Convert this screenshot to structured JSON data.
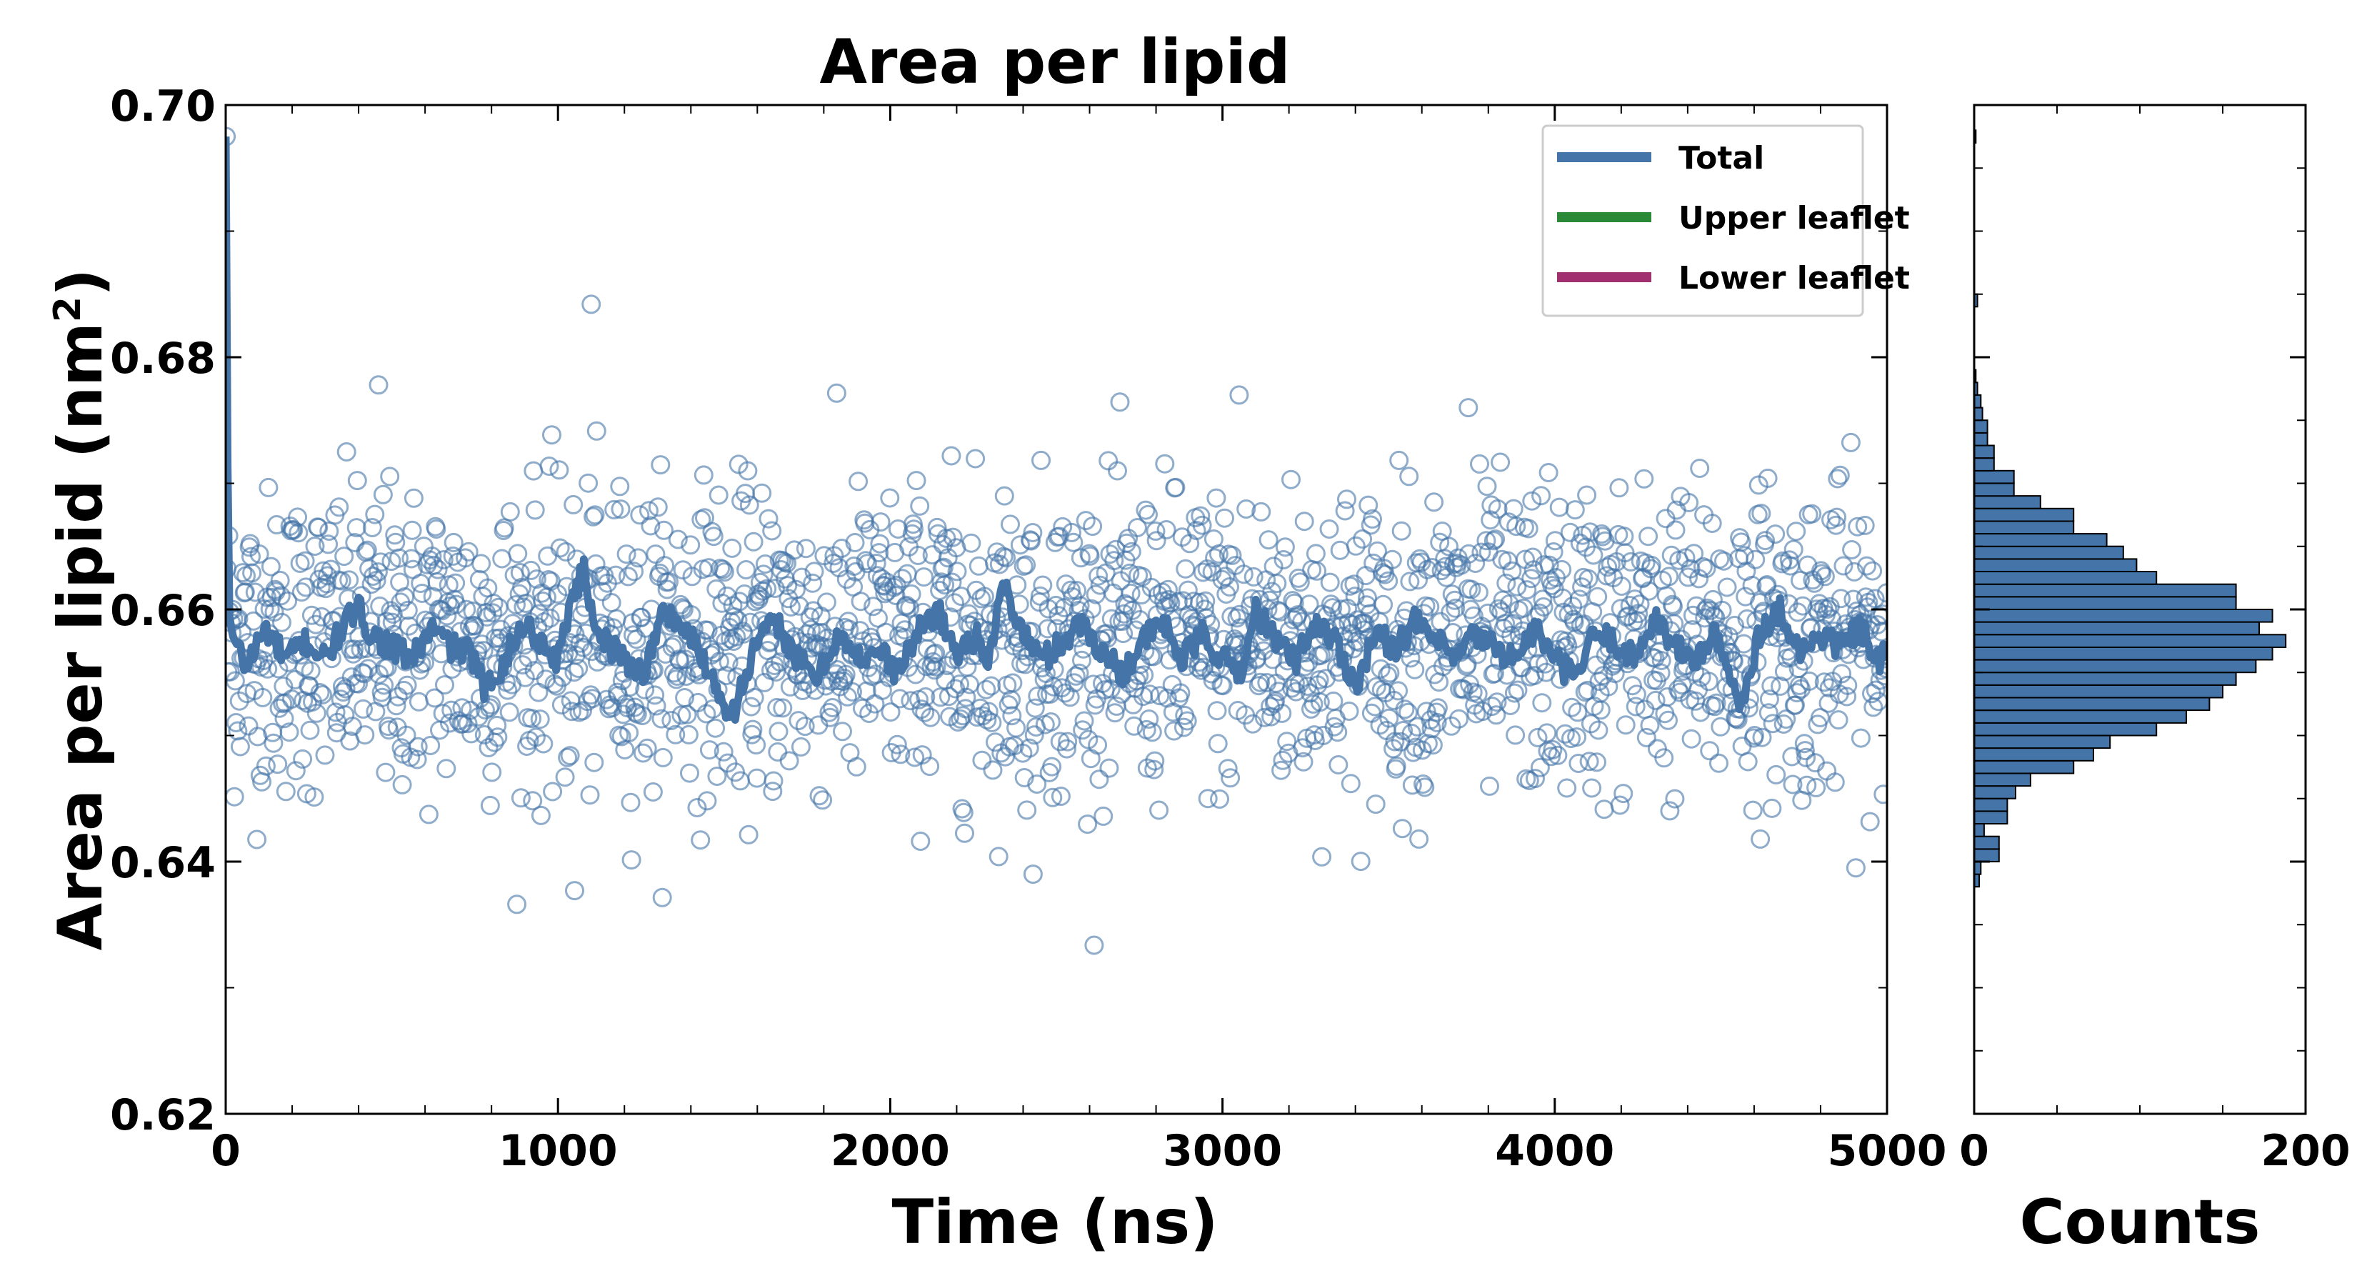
{
  "chart_data": [
    {
      "type": "scatter",
      "title": "Area per lipid",
      "xlabel": "Time (ns)",
      "ylabel": "Area per lipid (nm",
      "ylabel_sup": "2",
      "ylabel_close": ")",
      "xlim": [
        0,
        5000
      ],
      "ylim": [
        0.62,
        0.7
      ],
      "xticks": [
        0,
        1000,
        2000,
        3000,
        4000,
        5000
      ],
      "xtick_labels": [
        "0",
        "1000",
        "2000",
        "3000",
        "4000",
        "5000"
      ],
      "yticks": [
        0.62,
        0.64,
        0.66,
        0.68,
        0.7
      ],
      "ytick_labels": [
        "0.62",
        "0.64",
        "0.66",
        "0.68",
        "0.70"
      ],
      "grid": false,
      "legend_position": "top-right",
      "legend": [
        {
          "label": "Total",
          "color": "#4575a8"
        },
        {
          "label": "Upper leaflet",
          "color": "#2a8a38"
        },
        {
          "label": "Lower leaflet",
          "color": "#a0306e"
        }
      ],
      "series": [
        {
          "name": "Total (raw samples)",
          "kind": "scatter",
          "color": "#4575a8",
          "marker": "open-circle",
          "n_points": 2000,
          "x_range": [
            0,
            5000
          ],
          "mean": 0.6575,
          "std": 0.006,
          "initial_value": 0.6975,
          "notable_points": [
            {
              "x": 1100,
              "y": 0.6842
            },
            {
              "x": 3050,
              "y": 0.677
            },
            {
              "x": 460,
              "y": 0.6778
            },
            {
              "x": 1050,
              "y": 0.6377
            },
            {
              "x": 3740,
              "y": 0.676
            },
            {
              "x": 2430,
              "y": 0.639
            }
          ]
        },
        {
          "name": "Total (running average)",
          "kind": "line",
          "color": "#4575a8",
          "x": [
            0,
            8,
            20,
            60,
            120,
            180,
            240,
            300,
            360,
            400,
            440,
            500,
            560,
            620,
            680,
            740,
            780,
            840,
            900,
            960,
            1000,
            1040,
            1080,
            1100,
            1140,
            1200,
            1260,
            1320,
            1380,
            1440,
            1500,
            1530,
            1600,
            1660,
            1720,
            1780,
            1840,
            1900,
            1960,
            2020,
            2080,
            2140,
            2200,
            2260,
            2300,
            2340,
            2400,
            2460,
            2520,
            2580,
            2640,
            2700,
            2760,
            2820,
            2880,
            2940,
            3000,
            3060,
            3100,
            3160,
            3220,
            3280,
            3340,
            3400,
            3460,
            3520,
            3580,
            3640,
            3700,
            3760,
            3820,
            3880,
            3940,
            4000,
            4060,
            4120,
            4180,
            4240,
            4300,
            4360,
            4420,
            4480,
            4520,
            4560,
            4620,
            4680,
            4740,
            4800,
            4860,
            4920,
            4980,
            5000
          ],
          "y": [
            0.6975,
            0.66,
            0.658,
            0.6555,
            0.6585,
            0.656,
            0.6575,
            0.656,
            0.659,
            0.66,
            0.658,
            0.657,
            0.656,
            0.6585,
            0.657,
            0.6565,
            0.6535,
            0.656,
            0.659,
            0.657,
            0.656,
            0.661,
            0.663,
            0.66,
            0.6575,
            0.656,
            0.655,
            0.66,
            0.6585,
            0.656,
            0.6525,
            0.652,
            0.6575,
            0.659,
            0.656,
            0.6545,
            0.658,
            0.656,
            0.657,
            0.655,
            0.658,
            0.66,
            0.6565,
            0.658,
            0.656,
            0.662,
            0.658,
            0.656,
            0.6575,
            0.659,
            0.6565,
            0.655,
            0.6575,
            0.659,
            0.656,
            0.658,
            0.656,
            0.655,
            0.66,
            0.6575,
            0.656,
            0.659,
            0.6575,
            0.654,
            0.658,
            0.657,
            0.659,
            0.6575,
            0.656,
            0.658,
            0.657,
            0.656,
            0.6585,
            0.656,
            0.6545,
            0.658,
            0.6575,
            0.656,
            0.6595,
            0.657,
            0.656,
            0.658,
            0.655,
            0.6525,
            0.6585,
            0.66,
            0.6565,
            0.658,
            0.657,
            0.6585,
            0.6555,
            0.657
          ]
        }
      ]
    },
    {
      "type": "bar",
      "orientation": "horizontal",
      "title": "",
      "xlabel": "Counts",
      "ylabel": "",
      "xlim": [
        0,
        200
      ],
      "ylim": [
        0.62,
        0.7
      ],
      "xticks": [
        0,
        200
      ],
      "xtick_labels": [
        "0",
        "200"
      ],
      "bar_color": "#4575a8",
      "bar_edge_color": "#000000",
      "bin_width": 0.001,
      "bin_lower_edges": [
        0.638,
        0.639,
        0.64,
        0.641,
        0.642,
        0.643,
        0.644,
        0.645,
        0.646,
        0.647,
        0.648,
        0.649,
        0.65,
        0.651,
        0.652,
        0.653,
        0.654,
        0.655,
        0.656,
        0.657,
        0.658,
        0.659,
        0.66,
        0.661,
        0.662,
        0.663,
        0.664,
        0.665,
        0.666,
        0.667,
        0.668,
        0.669,
        0.67,
        0.671,
        0.672,
        0.673,
        0.674,
        0.675,
        0.676,
        0.677,
        0.678,
        0.684,
        0.697
      ],
      "counts": [
        3,
        4,
        15,
        15,
        6,
        20,
        20,
        25,
        34,
        60,
        72,
        82,
        110,
        128,
        142,
        150,
        158,
        170,
        180,
        188,
        172,
        180,
        158,
        158,
        110,
        98,
        90,
        80,
        60,
        60,
        40,
        24,
        24,
        12,
        12,
        8,
        8,
        5,
        4,
        2,
        1,
        2,
        1
      ]
    }
  ]
}
